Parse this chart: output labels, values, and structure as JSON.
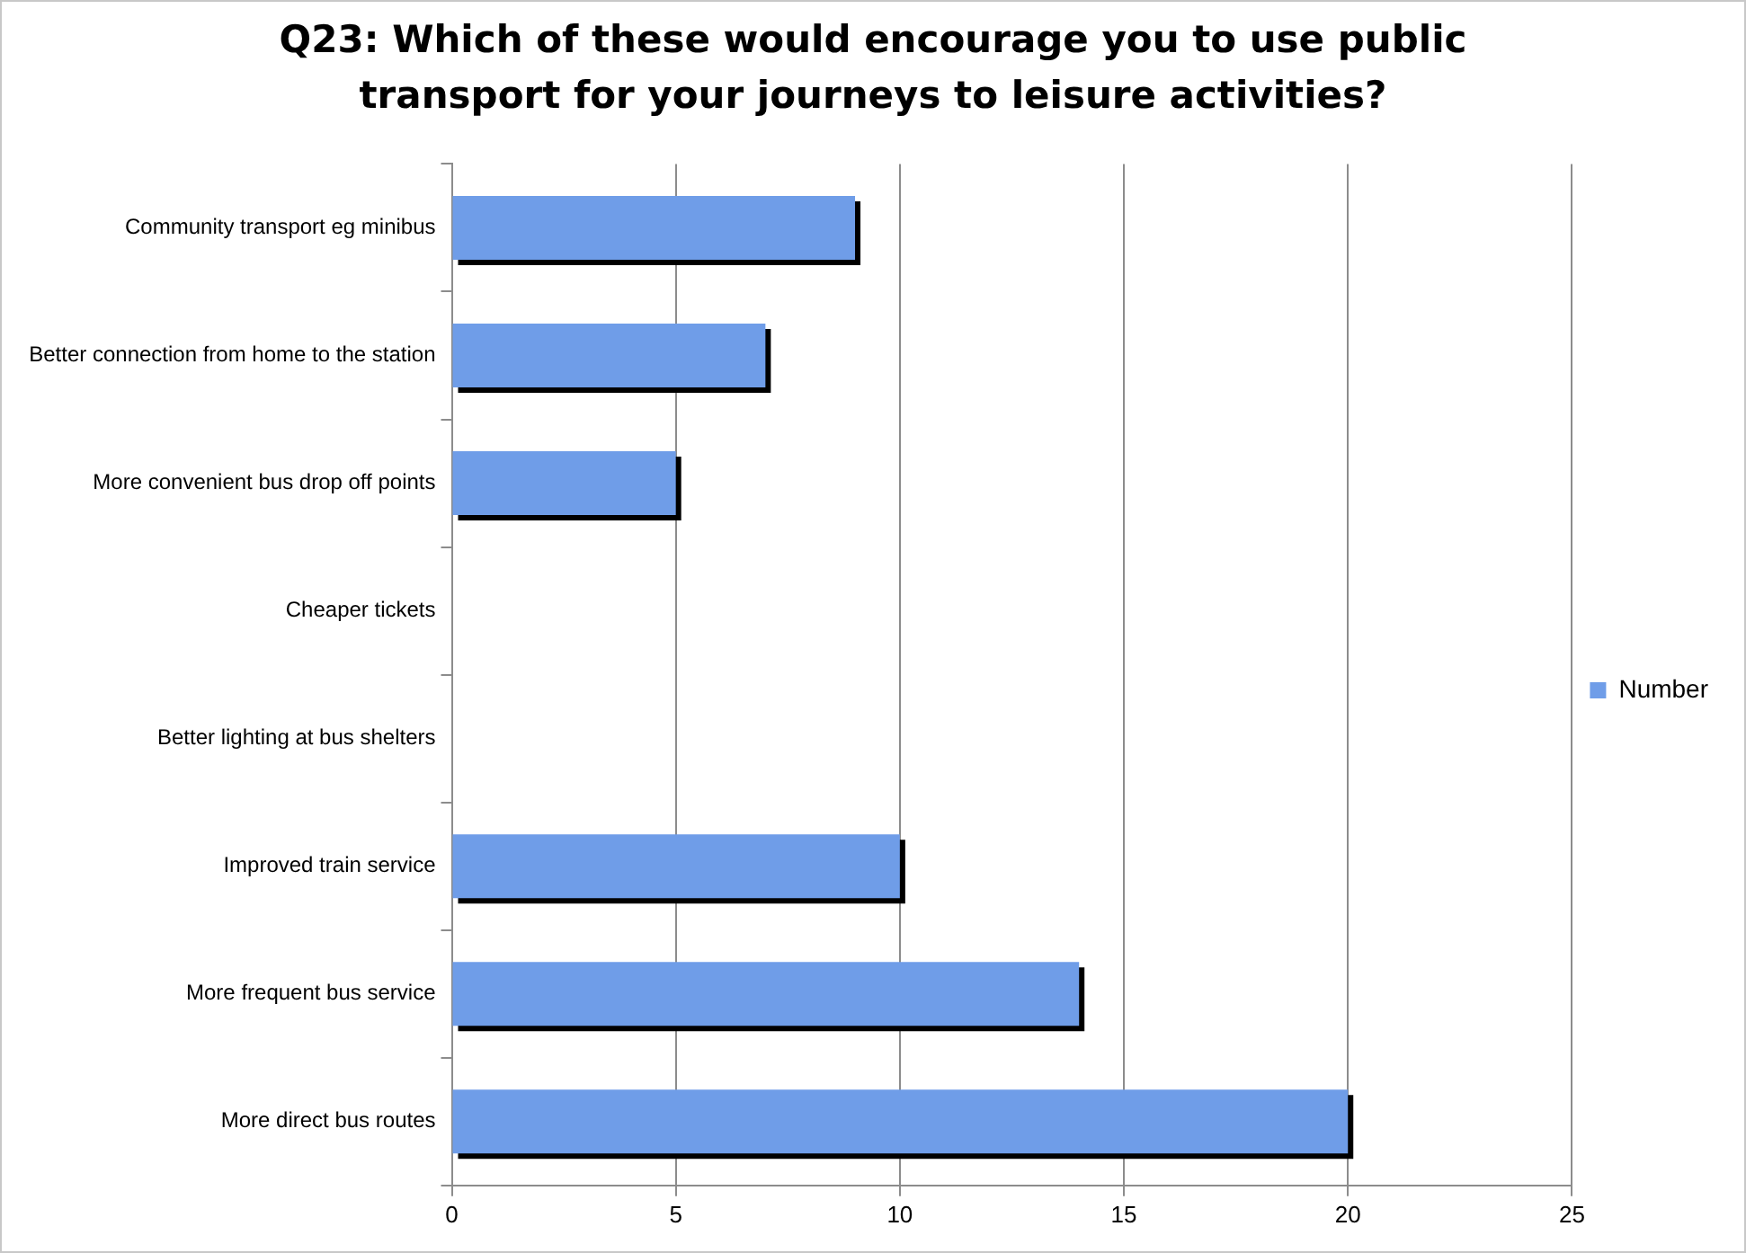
{
  "chart_data": {
    "type": "bar",
    "orientation": "horizontal",
    "title": "Q23: Which of these would encourage you to use public transport for your journeys to leisure activities?",
    "categories": [
      "Community transport eg minibus",
      "Better connection from home to the station",
      "More convenient bus drop off points",
      "Cheaper tickets",
      "Better lighting at bus shelters",
      "Improved train service",
      "More frequent bus service",
      "More direct bus routes"
    ],
    "series": [
      {
        "name": "Number",
        "color": "#6f9de8",
        "values": [
          9,
          7,
          5,
          0,
          0,
          10,
          14,
          20
        ]
      }
    ],
    "xlim": [
      0,
      25
    ],
    "xticks": [
      0,
      5,
      10,
      15,
      20,
      25
    ],
    "grid": "x",
    "legend": "right"
  }
}
